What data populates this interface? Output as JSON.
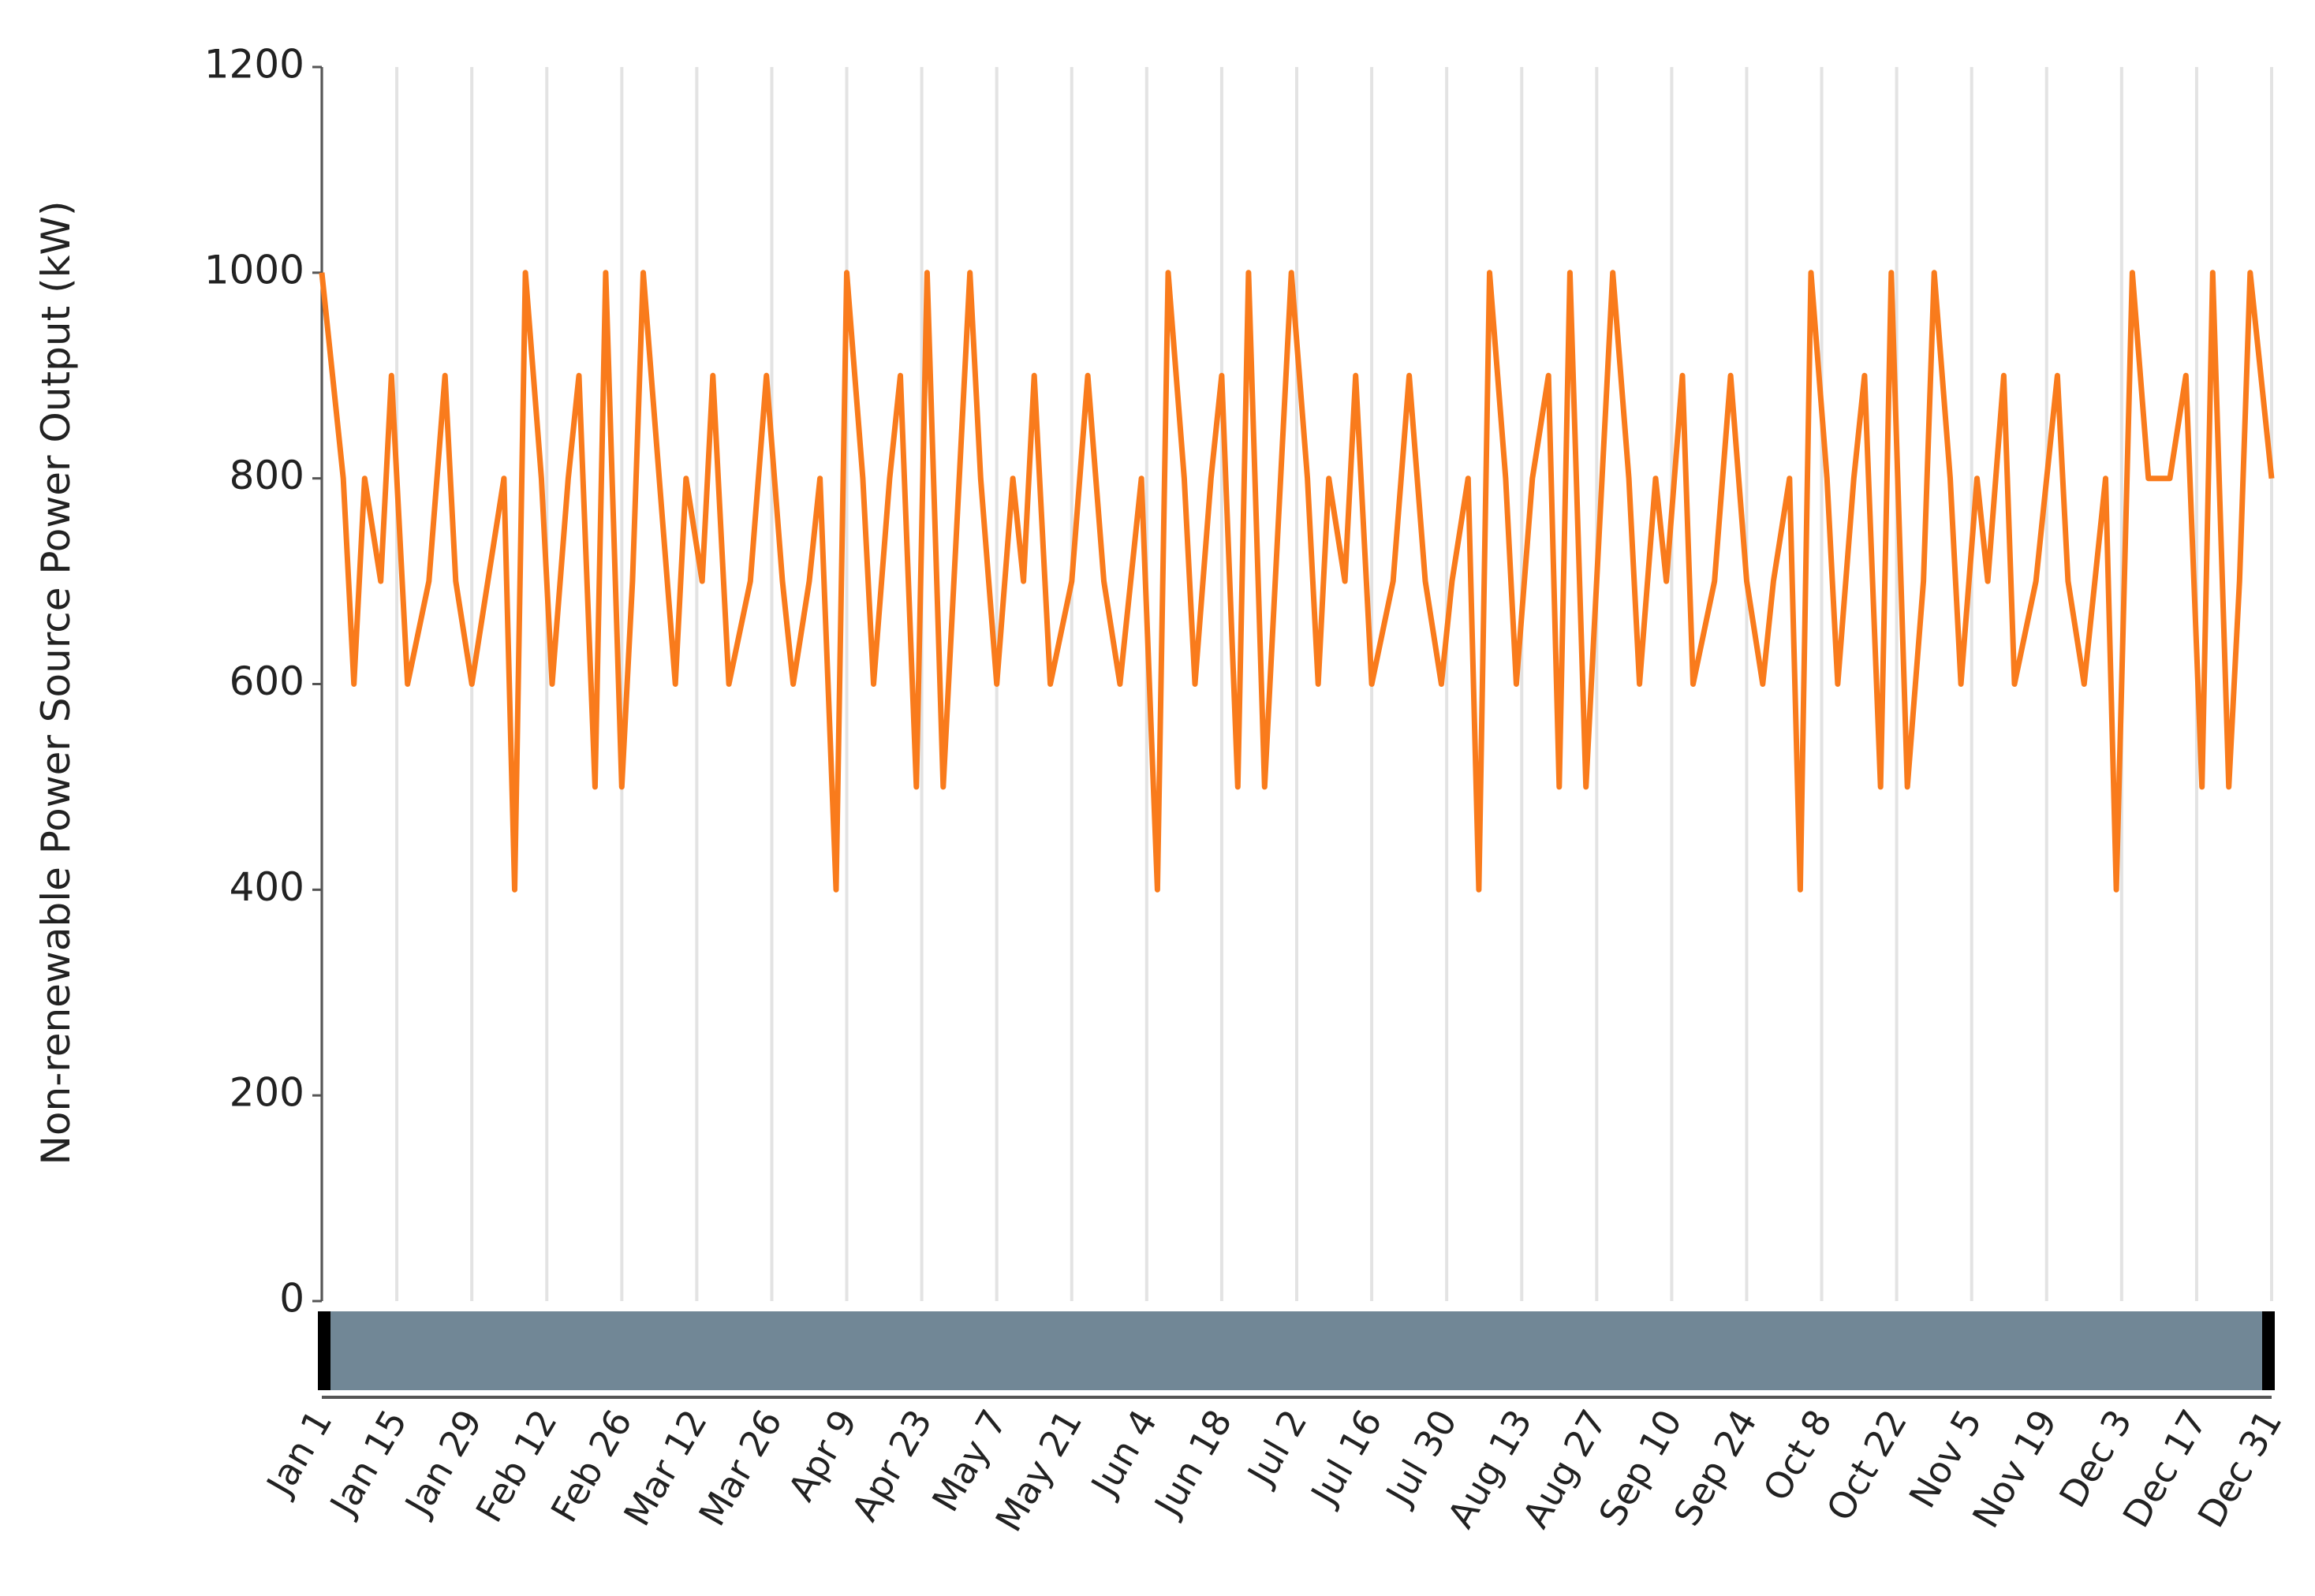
{
  "chart_data": {
    "type": "line",
    "y_label": "Non-renewable Power Source Power Output (kW)",
    "ylim": [
      0,
      1200
    ],
    "yticks": [
      0,
      200,
      400,
      600,
      800,
      1000,
      1200
    ],
    "xlim": [
      "Jan 1",
      "Dec 31"
    ],
    "xticks": [
      "Jan 1",
      "Jan 15",
      "Jan 29",
      "Feb 12",
      "Feb 26",
      "Mar 12",
      "Mar 26",
      "Apr 9",
      "Apr 23",
      "May 7",
      "May 21",
      "Jun 4",
      "Jun 18",
      "Jul 2",
      "Jul 16",
      "Jul 30",
      "Aug 13",
      "Aug 27",
      "Sep 10",
      "Sep 24",
      "Oct 8",
      "Oct 22",
      "Nov 5",
      "Nov 19",
      "Dec 3",
      "Dec 17",
      "Dec 31"
    ],
    "grid": true,
    "x": [
      "Jan 1",
      "Jan 5",
      "Jan 7",
      "Jan 9",
      "Jan 12",
      "Jan 14",
      "Jan 17",
      "Jan 21",
      "Jan 24",
      "Jan 26",
      "Jan 29",
      "Feb 1",
      "Feb 4",
      "Feb 6",
      "Feb 8",
      "Feb 11",
      "Feb 13",
      "Feb 16",
      "Feb 18",
      "Feb 21",
      "Feb 23",
      "Feb 26",
      "Feb 28",
      "Mar 2",
      "Mar 5",
      "Mar 8",
      "Mar 10",
      "Mar 13",
      "Mar 15",
      "Mar 18",
      "Mar 22",
      "Mar 25",
      "Mar 28",
      "Mar 30",
      "Apr 2",
      "Apr 4",
      "Apr 7",
      "Apr 9",
      "Apr 12",
      "Apr 14",
      "Apr 17",
      "Apr 19",
      "Apr 22",
      "Apr 24",
      "Apr 27",
      "Apr 29",
      "May 2",
      "May 4",
      "May 7",
      "May 10",
      "May 12",
      "May 14",
      "May 17",
      "May 21",
      "May 24",
      "May 27",
      "May 30",
      "Jun 1",
      "Jun 3",
      "Jun 6",
      "Jun 8",
      "Jun 11",
      "Jun 13",
      "Jun 16",
      "Jun 18",
      "Jun 21",
      "Jun 23",
      "Jun 26",
      "Jun 28",
      "Jul 1",
      "Jul 4",
      "Jul 6",
      "Jul 8",
      "Jul 11",
      "Jul 13",
      "Jul 16",
      "Jul 20",
      "Jul 23",
      "Jul 26",
      "Jul 29",
      "Jul 31",
      "Aug 3",
      "Aug 5",
      "Aug 7",
      "Aug 10",
      "Aug 12",
      "Aug 15",
      "Aug 18",
      "Aug 20",
      "Aug 22",
      "Aug 25",
      "Aug 27",
      "Aug 30",
      "Sep 2",
      "Sep 4",
      "Sep 7",
      "Sep 9",
      "Sep 12",
      "Sep 14",
      "Sep 18",
      "Sep 21",
      "Sep 24",
      "Sep 27",
      "Sep 29",
      "Oct 2",
      "Oct 4",
      "Oct 6",
      "Oct 9",
      "Oct 11",
      "Oct 14",
      "Oct 16",
      "Oct 19",
      "Oct 21",
      "Oct 24",
      "Oct 27",
      "Oct 29",
      "Nov 1",
      "Nov 3",
      "Nov 6",
      "Nov 8",
      "Nov 11",
      "Nov 13",
      "Nov 17",
      "Nov 21",
      "Nov 23",
      "Nov 26",
      "Nov 28",
      "Nov 30",
      "Dec 2",
      "Dec 5",
      "Dec 8",
      "Dec 12",
      "Dec 15",
      "Dec 18",
      "Dec 20",
      "Dec 23",
      "Dec 25",
      "Dec 27",
      "Dec 31"
    ],
    "series": [
      {
        "color": "#f97b1c",
        "values": [
          1000,
          800,
          600,
          800,
          700,
          900,
          600,
          700,
          900,
          700,
          600,
          700,
          800,
          400,
          1000,
          800,
          600,
          800,
          900,
          500,
          1000,
          500,
          700,
          1000,
          800,
          600,
          800,
          700,
          900,
          600,
          700,
          900,
          700,
          600,
          700,
          800,
          400,
          1000,
          800,
          600,
          800,
          900,
          500,
          1000,
          500,
          700,
          1000,
          800,
          600,
          800,
          700,
          900,
          600,
          700,
          900,
          700,
          600,
          700,
          800,
          400,
          1000,
          800,
          600,
          800,
          900,
          500,
          1000,
          500,
          700,
          1000,
          800,
          600,
          800,
          700,
          900,
          600,
          700,
          900,
          700,
          600,
          700,
          800,
          400,
          1000,
          800,
          600,
          800,
          900,
          500,
          1000,
          500,
          700,
          1000,
          800,
          600,
          800,
          700,
          900,
          600,
          700,
          900,
          700,
          600,
          700,
          800,
          400,
          1000,
          800,
          600,
          800,
          900,
          500,
          1000,
          500,
          700,
          1000,
          800,
          600,
          800,
          700,
          900,
          600,
          700,
          900,
          700,
          600,
          700,
          800,
          400,
          1000,
          800,
          800,
          900,
          500,
          1000,
          500,
          700,
          1000,
          800
        ]
      }
    ]
  }
}
